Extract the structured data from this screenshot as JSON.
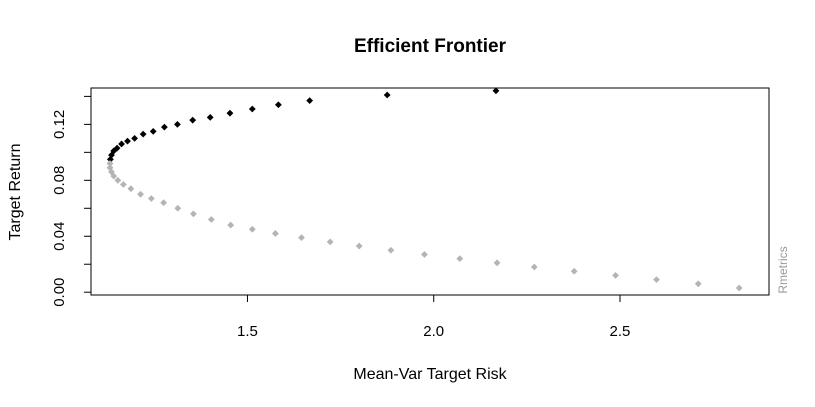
{
  "chart_data": {
    "type": "scatter",
    "title": "Efficient Frontier",
    "xlabel": "Mean-Var Target Risk",
    "ylabel": "Target Return",
    "watermark": "Rmetrics",
    "xlim": [
      1.08,
      2.9
    ],
    "ylim": [
      -0.002,
      0.146
    ],
    "x_ticks": [
      1.5,
      2.0,
      2.5
    ],
    "x_tick_labels": [
      "1.5",
      "2.0",
      "2.5"
    ],
    "y_ticks": [
      0.0,
      0.02,
      0.04,
      0.06,
      0.08,
      0.1,
      0.12,
      0.14
    ],
    "y_tick_labels": [
      "0.00",
      "",
      "0.04",
      "",
      "0.08",
      "",
      "0.12",
      ""
    ],
    "grid": false,
    "series": [
      {
        "color": "#000000",
        "points": [
          [
            1.132,
            0.095
          ],
          [
            1.135,
            0.098
          ],
          [
            1.141,
            0.101
          ],
          [
            1.15,
            0.103
          ],
          [
            1.162,
            0.106
          ],
          [
            1.178,
            0.108
          ],
          [
            1.197,
            0.11
          ],
          [
            1.22,
            0.113
          ],
          [
            1.247,
            0.115
          ],
          [
            1.277,
            0.118
          ],
          [
            1.312,
            0.12
          ],
          [
            1.353,
            0.123
          ],
          [
            1.4,
            0.125
          ],
          [
            1.453,
            0.128
          ],
          [
            1.513,
            0.131
          ],
          [
            1.583,
            0.134
          ],
          [
            1.667,
            0.137
          ],
          [
            1.875,
            0.141
          ],
          [
            2.167,
            0.144
          ]
        ]
      },
      {
        "color": "#b4b4b4",
        "points": [
          [
            1.131,
            0.092
          ],
          [
            1.131,
            0.089
          ],
          [
            1.135,
            0.086
          ],
          [
            1.141,
            0.083
          ],
          [
            1.152,
            0.08
          ],
          [
            1.167,
            0.077
          ],
          [
            1.187,
            0.074
          ],
          [
            1.213,
            0.07
          ],
          [
            1.242,
            0.067
          ],
          [
            1.275,
            0.064
          ],
          [
            1.313,
            0.06
          ],
          [
            1.355,
            0.056
          ],
          [
            1.403,
            0.052
          ],
          [
            1.455,
            0.048
          ],
          [
            1.513,
            0.045
          ],
          [
            1.575,
            0.042
          ],
          [
            1.645,
            0.039
          ],
          [
            1.722,
            0.036
          ],
          [
            1.8,
            0.033
          ],
          [
            1.885,
            0.03
          ],
          [
            1.975,
            0.027
          ],
          [
            2.07,
            0.024
          ],
          [
            2.17,
            0.021
          ],
          [
            2.27,
            0.018
          ],
          [
            2.377,
            0.015
          ],
          [
            2.488,
            0.012
          ],
          [
            2.598,
            0.009
          ],
          [
            2.71,
            0.006
          ],
          [
            2.82,
            0.003
          ]
        ]
      }
    ]
  }
}
